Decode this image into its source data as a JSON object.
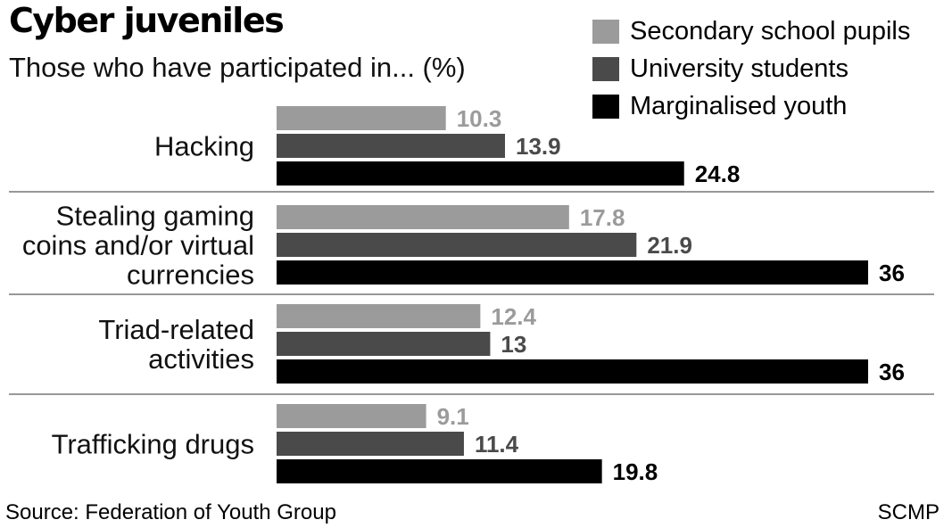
{
  "header": {
    "title": "Cyber juveniles",
    "subtitle": "Those who have participated in... (%)"
  },
  "footer": {
    "source": "Source: Federation of Youth Group",
    "credit": "SCMP"
  },
  "colors": {
    "secondary": "#9b9b9b",
    "university": "#4a4a4a",
    "marginalised": "#000000",
    "divider": "#777777"
  },
  "chart_data": {
    "type": "bar",
    "orientation": "horizontal",
    "title": "Cyber juveniles",
    "subtitle": "Those who have participated in... (%)",
    "legend_position": "top-right",
    "grid": false,
    "xlim": [
      0,
      40
    ],
    "categories": [
      [
        "Hacking"
      ],
      [
        "Stealing gaming",
        "coins and/or virtual",
        "currencies"
      ],
      [
        "Triad-related",
        "activities"
      ],
      [
        "Trafficking drugs"
      ]
    ],
    "series": [
      {
        "name": "Secondary school pupils",
        "color": "#9b9b9b",
        "values": [
          10.3,
          17.8,
          12.4,
          9.1
        ],
        "labels": [
          "10.3",
          "17.8",
          "12.4",
          "9.1"
        ]
      },
      {
        "name": "University students",
        "color": "#4a4a4a",
        "values": [
          13.9,
          21.9,
          13,
          11.4
        ],
        "labels": [
          "13.9",
          "21.9",
          "13",
          "11.4"
        ]
      },
      {
        "name": "Marginalised youth",
        "color": "#000000",
        "values": [
          24.8,
          36,
          36,
          19.8
        ],
        "labels": [
          "24.8",
          "36",
          "36",
          "19.8"
        ]
      }
    ]
  }
}
